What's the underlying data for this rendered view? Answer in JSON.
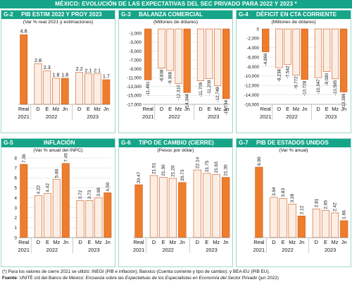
{
  "header": {
    "title": "MÉXICO: EVOLUCIÓN DE LAS EXPECTATIVAS DEL SEC PRIVADO PARA 2022 Y 2023 *"
  },
  "colors": {
    "header_bg": "#17a589",
    "bar_fill": "#fdeee4",
    "bar_stroke": "#c8571a",
    "bar_highlight": "#ee7d2c",
    "axis_text": "#111111"
  },
  "footer": {
    "note": "(*) Para los valores de cierre 2021 se utilizó: INEGI (PIB e inflación); Banxico (Cuenta corriente y tipo de cambio); y BEA-EU (PIB EU).",
    "source_label": "Fuente",
    "source_text": ": UNITÉ c/d del Banco de México: ",
    "source_title": "Encuesta sobre las Expectativas de los Especialistas en Economía del Sector Privado",
    "source_date": " (jun 2022)"
  },
  "chart_data": [
    {
      "id": "G-2",
      "title": "PIB ESTIM 2022 Y PROY 2023",
      "units": "(Var % real 2021 y estimaciones)",
      "type": "bar",
      "categories": [
        "Real",
        "D",
        "E",
        "Mz",
        "Jn",
        "D",
        "E",
        "Mz",
        "Jn"
      ],
      "groups": [
        {
          "label": "2021",
          "start": 0,
          "end": 0
        },
        {
          "label": "2022",
          "start": 1,
          "end": 4
        },
        {
          "label": "2023",
          "start": 5,
          "end": 8
        }
      ],
      "values": [
        4.8,
        2.8,
        2.3,
        1.8,
        1.8,
        2.2,
        2.1,
        2.1,
        1.7
      ],
      "value_labels": [
        "4.8",
        "2.8",
        "2.3",
        "1.8",
        "1.8",
        "2.2",
        "2.1",
        "2.1",
        "1.7"
      ],
      "highlight": [
        0,
        4,
        8
      ],
      "ylim": [
        0,
        5.2
      ],
      "yticks": [],
      "label_rotate": false
    },
    {
      "id": "G-3",
      "title": "BALANZA COMERCIAL",
      "units": "(Millones de dólares)",
      "type": "bar",
      "categories": [
        "Real",
        "D",
        "E",
        "Mz",
        "Jn",
        "D",
        "E",
        "Mz",
        "Jn"
      ],
      "groups": [
        {
          "label": "2021",
          "start": 0,
          "end": 0
        },
        {
          "label": "2022",
          "start": 1,
          "end": 4
        },
        {
          "label": "2023",
          "start": 5,
          "end": 8
        }
      ],
      "values": [
        -11491,
        -8838,
        -9368,
        -12310,
        -14344,
        -11709,
        -11208,
        -12749,
        -15734
      ],
      "value_labels": [
        "-11,491",
        "-8,838",
        "-9,368",
        "-12,310",
        "-14,344",
        "-11,709",
        "-11,208",
        "-12,749",
        "-15,734"
      ],
      "highlight": [
        0,
        4,
        8
      ],
      "ylim": [
        -17000,
        0
      ],
      "yticks": [
        -1000,
        -3000,
        -5000,
        -7000,
        -9000,
        -11000,
        -13000,
        -15000,
        -17000
      ],
      "ytick_labels": [
        "-1,000",
        "-3,000",
        "-5,000",
        "-7,000",
        "-9,000",
        "-11,000",
        "-13,000",
        "-15,000",
        "-17,000"
      ],
      "label_rotate": true
    },
    {
      "id": "G-4",
      "title": "DÉFICIT EN CTA CORRIENTE",
      "units": "(Millones de dólares)",
      "type": "bar",
      "categories": [
        "Real",
        "D",
        "E",
        "Mz",
        "Jn",
        "D",
        "E",
        "Mz",
        "Jn"
      ],
      "groups": [
        {
          "label": "2021",
          "start": 0,
          "end": 0
        },
        {
          "label": "2022",
          "start": 1,
          "end": 4
        },
        {
          "label": "2023",
          "start": 5,
          "end": 8
        }
      ],
      "values": [
        -4866,
        -8238,
        -7542,
        -9772,
        -10728,
        -10347,
        -9080,
        -10595,
        -13386
      ],
      "value_labels": [
        "-4,866",
        "-8,238",
        "-7,542",
        "-9,772",
        "-10,728",
        "-10,347",
        "-9,080",
        "-10,595",
        "-13,386"
      ],
      "highlight": [
        0,
        4,
        8
      ],
      "ylim": [
        -16000,
        0
      ],
      "yticks": [
        0,
        -2000,
        -4000,
        -6000,
        -8000,
        -10000,
        -12000,
        -14000,
        -16000
      ],
      "ytick_labels": [
        "0",
        "-2,000",
        "-4,000",
        "-6,000",
        "-8,000",
        "-10,000",
        "-12,000",
        "-14,000",
        "-16,000"
      ],
      "label_rotate": true
    },
    {
      "id": "G-5",
      "title": "INFLACIÓN",
      "units": "(Var % anual del INPC)",
      "type": "bar",
      "categories": [
        "Real",
        "D",
        "E",
        "Mz",
        "Jn",
        "D",
        "E",
        "Mz",
        "Jn"
      ],
      "groups": [
        {
          "label": "2021",
          "start": 0,
          "end": 0
        },
        {
          "label": "2022",
          "start": 1,
          "end": 4
        },
        {
          "label": "2023",
          "start": 5,
          "end": 8
        }
      ],
      "values": [
        7.36,
        4.22,
        4.42,
        5.86,
        7.45,
        3.72,
        3.73,
        3.98,
        4.5
      ],
      "value_labels": [
        "7.36",
        "4.22",
        "4.42",
        "5.86",
        "7.45",
        "3.72",
        "3.73",
        "3.98",
        "4.50"
      ],
      "highlight": [
        0,
        4,
        8
      ],
      "ylim": [
        0,
        8
      ],
      "yticks": [
        0,
        1,
        2,
        3,
        4,
        5,
        6,
        7,
        8
      ],
      "ytick_labels": [
        "0",
        "1",
        "2",
        "3",
        "4",
        "5",
        "6",
        "7",
        "8"
      ],
      "label_rotate": true
    },
    {
      "id": "G-6",
      "title": "TIPO DE CAMBIO (CIERRE)",
      "units": "(Pesos por dólar)",
      "type": "bar",
      "categories": [
        "Real",
        "D",
        "E",
        "Mz",
        "Jn",
        "D",
        "E",
        "Mz",
        "Jn"
      ],
      "groups": [
        {
          "label": "2021",
          "start": 0,
          "end": 0
        },
        {
          "label": "2022",
          "start": 1,
          "end": 4
        },
        {
          "label": "2023",
          "start": 5,
          "end": 8
        }
      ],
      "values": [
        20.47,
        21.51,
        21.3,
        21.2,
        20.73,
        22.14,
        21.75,
        21.63,
        21.3
      ],
      "value_labels": [
        "20.47",
        "21.51",
        "21.30",
        "21.20",
        "20.73",
        "22.14",
        "21.75",
        "21.63",
        "21.30"
      ],
      "highlight": [
        0,
        4,
        8
      ],
      "ylim": [
        14.5,
        23.5
      ],
      "yticks": [],
      "label_rotate": true
    },
    {
      "id": "G-7",
      "title": "PIB DE ESTADOS UNIDOS",
      "units": "(Var % anual)",
      "type": "bar",
      "categories": [
        "Real",
        "D",
        "E",
        "Mz",
        "Jn",
        "D",
        "E",
        "Mz",
        "Jn"
      ],
      "groups": [
        {
          "label": "2021",
          "start": 0,
          "end": 0
        },
        {
          "label": "2022",
          "start": 1,
          "end": 4
        },
        {
          "label": "2023",
          "start": 5,
          "end": 8
        }
      ],
      "values": [
        6.9,
        3.94,
        3.83,
        3.28,
        2.12,
        2.81,
        2.65,
        2.42,
        1.66
      ],
      "value_labels": [
        "6.90",
        "3.94",
        "3.83",
        "3.28",
        "2.12",
        "2.81",
        "2.65",
        "2.42",
        "1.66"
      ],
      "highlight": [
        0,
        4,
        8
      ],
      "ylim": [
        0,
        7.8
      ],
      "yticks": [],
      "label_rotate": true
    }
  ]
}
